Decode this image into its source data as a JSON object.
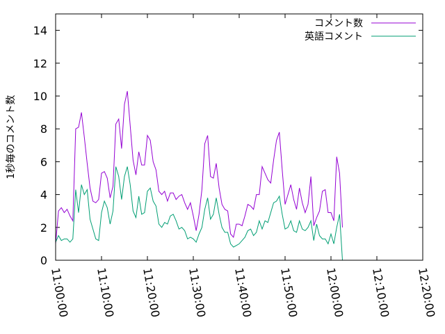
{
  "chart_data": {
    "type": "line",
    "title": "",
    "xlabel": "",
    "ylabel": "1秒毎のコメント数",
    "ylim": [
      0,
      15
    ],
    "yticks": [
      0,
      2,
      4,
      6,
      8,
      10,
      12,
      14
    ],
    "xlim": [
      "11:00:00",
      "12:20:00"
    ],
    "xticks": [
      "11:00:00",
      "11:10:00",
      "11:20:00",
      "11:30:00",
      "11:40:00",
      "11:50:00",
      "12:00:00",
      "12:10:00",
      "12:20:00"
    ],
    "legend_position": "top-right",
    "grid": false,
    "x_step_seconds": 37.5,
    "series": [
      {
        "name": "コメント数",
        "color": "#9400d3",
        "values": [
          1.0,
          3.0,
          3.2,
          2.9,
          3.1,
          2.7,
          2.4,
          8.0,
          8.1,
          9.0,
          7.5,
          5.9,
          4.4,
          3.6,
          3.5,
          3.7,
          5.3,
          5.4,
          5.0,
          3.8,
          4.5,
          8.3,
          8.6,
          6.8,
          9.5,
          10.3,
          8.2,
          6.1,
          5.2,
          6.6,
          5.8,
          5.8,
          7.6,
          7.3,
          6.0,
          5.5,
          4.2,
          4.0,
          4.2,
          3.6,
          4.1,
          4.1,
          3.7,
          3.9,
          4.0,
          3.5,
          3.1,
          3.5,
          2.7,
          1.8,
          2.8,
          4.3,
          7.1,
          7.6,
          5.1,
          5.0,
          5.9,
          4.4,
          3.4,
          3.1,
          3.0,
          1.6,
          1.4,
          2.2,
          2.2,
          2.1,
          2.7,
          3.4,
          3.3,
          3.1,
          4.0,
          4.0,
          5.7,
          5.3,
          4.9,
          4.7,
          6.1,
          7.3,
          7.8,
          5.5,
          3.4,
          4.0,
          4.6,
          3.7,
          3.1,
          4.4,
          3.5,
          2.9,
          3.4,
          5.1,
          2.1,
          2.6,
          3.0,
          4.2,
          4.3,
          2.9,
          2.9,
          2.4,
          6.3,
          5.3,
          2.0
        ]
      },
      {
        "name": "英語コメント",
        "color": "#009e73",
        "values": [
          1.1,
          1.5,
          1.2,
          1.3,
          1.3,
          1.1,
          1.3,
          4.3,
          2.9,
          4.6,
          4.0,
          4.3,
          2.5,
          1.9,
          1.3,
          1.2,
          2.9,
          3.6,
          3.2,
          2.2,
          3.0,
          5.7,
          5.1,
          3.7,
          5.1,
          5.7,
          4.6,
          3.0,
          2.6,
          3.9,
          2.8,
          2.9,
          4.2,
          4.4,
          3.6,
          3.3,
          2.2,
          2.0,
          2.3,
          2.2,
          2.7,
          2.8,
          2.4,
          1.9,
          2.0,
          1.8,
          1.3,
          1.4,
          1.3,
          1.1,
          1.6,
          2.0,
          3.1,
          3.8,
          2.5,
          2.8,
          3.8,
          2.8,
          2.0,
          1.7,
          1.7,
          1.0,
          0.8,
          0.9,
          1.0,
          1.2,
          1.4,
          1.8,
          1.9,
          1.5,
          1.7,
          2.4,
          1.9,
          2.4,
          2.3,
          2.9,
          3.5,
          3.6,
          3.9,
          2.8,
          1.9,
          2.0,
          2.4,
          1.8,
          1.7,
          2.4,
          1.9,
          1.8,
          2.0,
          2.4,
          1.2,
          2.2,
          1.5,
          1.3,
          1.3,
          1.0,
          1.6,
          1.0,
          2.0,
          2.8,
          0.0
        ]
      }
    ]
  }
}
